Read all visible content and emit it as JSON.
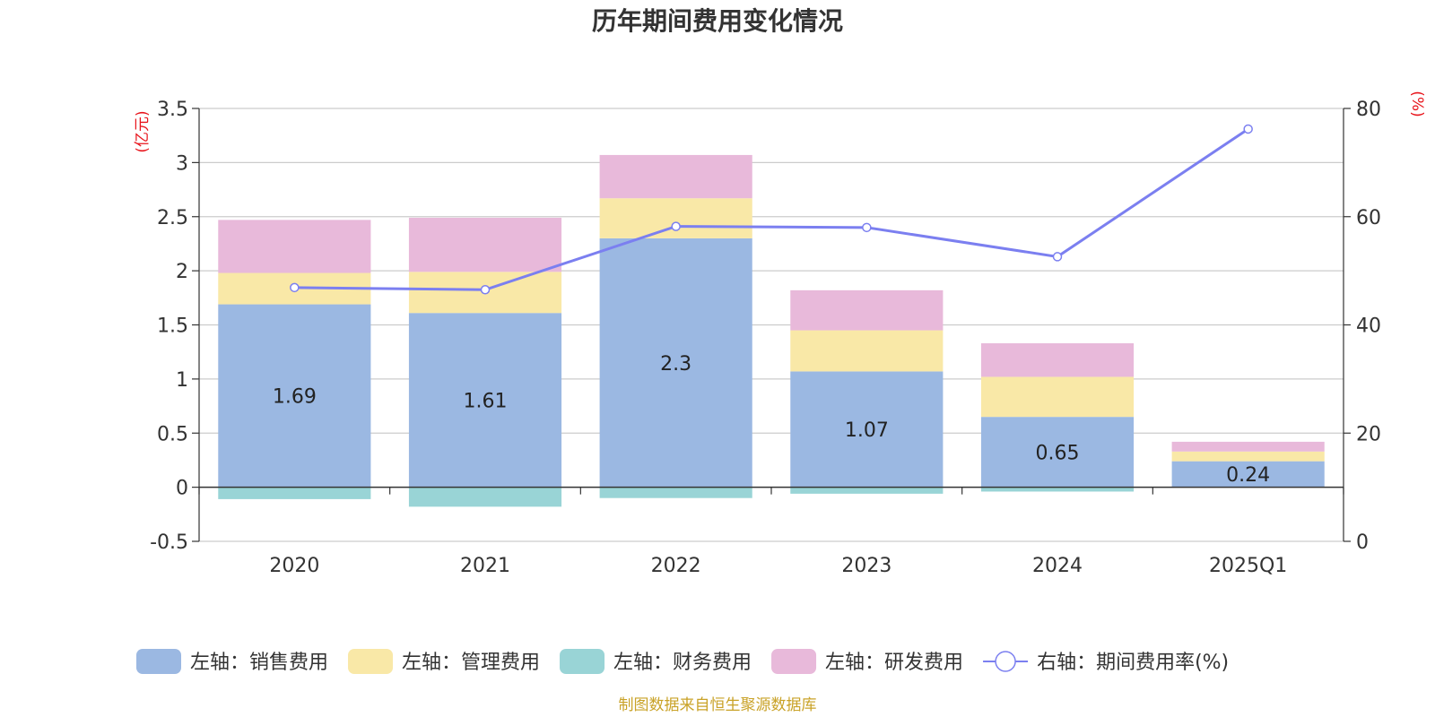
{
  "chart_data": {
    "type": "bar",
    "stacked": true,
    "title": "历年期间费用变化情况",
    "categories": [
      "2020",
      "2021",
      "2022",
      "2023",
      "2024",
      "2025Q1"
    ],
    "left_axis": {
      "unit": "(亿元)",
      "ylim": [
        -0.5,
        3.5
      ],
      "ticks": [
        "-0.5",
        "0",
        "0.5",
        "1",
        "1.5",
        "2",
        "2.5",
        "3",
        "3.5"
      ]
    },
    "right_axis": {
      "unit": "(%)",
      "ylim": [
        0,
        80
      ],
      "ticks": [
        "0",
        "20",
        "40",
        "60",
        "80"
      ]
    },
    "series": [
      {
        "name": "左轴：销售费用",
        "color": "#9bb8e2",
        "type": "bar",
        "values": [
          1.69,
          1.61,
          2.3,
          1.07,
          0.65,
          0.24
        ],
        "data_labels": [
          "1.69",
          "1.61",
          "2.3",
          "1.07",
          "0.65",
          "0.24"
        ]
      },
      {
        "name": "左轴：管理费用",
        "color": "#f9e8a7",
        "type": "bar",
        "values": [
          0.29,
          0.38,
          0.37,
          0.38,
          0.37,
          0.09
        ]
      },
      {
        "name": "左轴：财务费用",
        "color": "#99d4d6",
        "type": "bar",
        "values": [
          -0.11,
          -0.18,
          -0.1,
          -0.06,
          -0.04,
          0.0
        ]
      },
      {
        "name": "左轴：研发费用",
        "color": "#e8b9da",
        "type": "bar",
        "values": [
          0.49,
          0.5,
          0.4,
          0.37,
          0.31,
          0.09
        ]
      },
      {
        "name": "右轴：期间费用率(%)",
        "color": "#7b7ff0",
        "type": "line",
        "values": [
          46.9,
          46.5,
          58.2,
          58.0,
          52.6,
          76.2
        ]
      }
    ],
    "grid": true,
    "legend_position": "bottom"
  },
  "source": "制图数据来自恒生聚源数据库"
}
